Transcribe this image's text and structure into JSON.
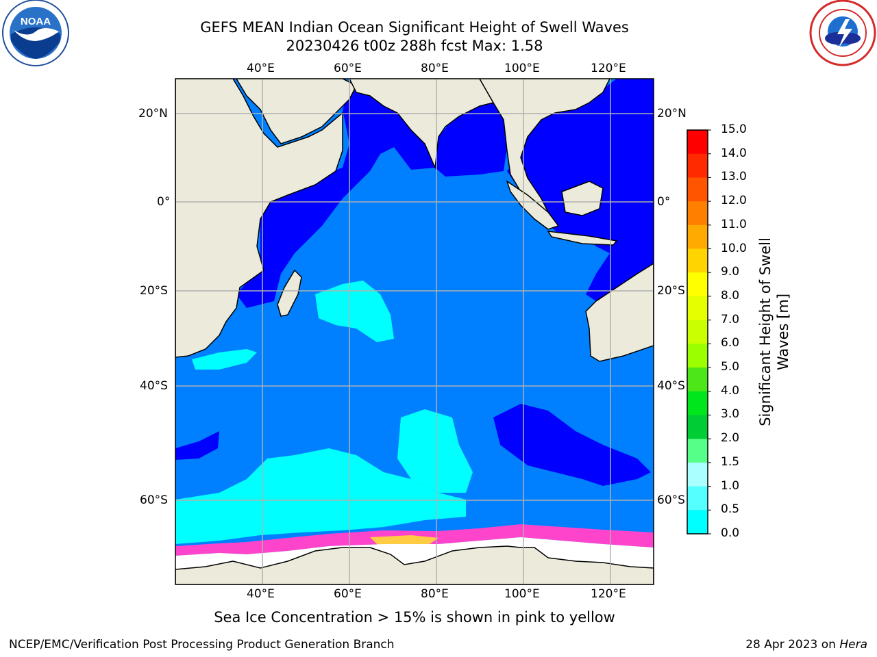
{
  "title_line1": "GEFS MEAN Indian Ocean Significant Height of Swell Waves",
  "title_line2": "20230426 t00z 288h fcst   Max: 1.58",
  "note": "Sea Ice Concentration > 15% is shown in pink to yellow",
  "footer_left": "NCEP/EMC/Verification Post Processing Product Generation Branch",
  "footer_date": "28 Apr 2023 on",
  "footer_machine": "Hera",
  "lon_labels": [
    "40°E",
    "60°E",
    "80°E",
    "100°E",
    "120°E"
  ],
  "lat_labels": [
    "20°N",
    "0°",
    "20°S",
    "40°S",
    "60°S"
  ],
  "colorbar": {
    "title_line1": "Significant Height of Swell",
    "title_line2": "Waves [m]",
    "ticks": [
      "15.0",
      "14.0",
      "13.0",
      "12.0",
      "11.0",
      "10.0",
      "9.0",
      "8.0",
      "7.0",
      "6.0",
      "5.0",
      "4.0",
      "3.0",
      "2.0",
      "1.5",
      "1.0",
      "0.5",
      "0.0"
    ],
    "colors": [
      "#ff0000",
      "#ff2a00",
      "#ff5500",
      "#ff7f00",
      "#ffaa00",
      "#ffd400",
      "#ffff00",
      "#e5ff00",
      "#c9ff00",
      "#9bff00",
      "#4de619",
      "#00e61c",
      "#00cd36",
      "#55ff88",
      "#aaffff",
      "#55ffff",
      "#00ffff",
      "#0080ff",
      "#0000ff"
    ]
  },
  "colors": {
    "land": "#ecebdb",
    "ocean_low": "#0000ff",
    "ocean_mid": "#0080ff",
    "ocean_high": "#00ffff",
    "ice_pink": "#ff44cc",
    "ice_yellow": "#ffcc44",
    "grid": "#b0b0b0"
  },
  "logos": [
    "noaa-logo",
    "national-weather-service-logo"
  ]
}
